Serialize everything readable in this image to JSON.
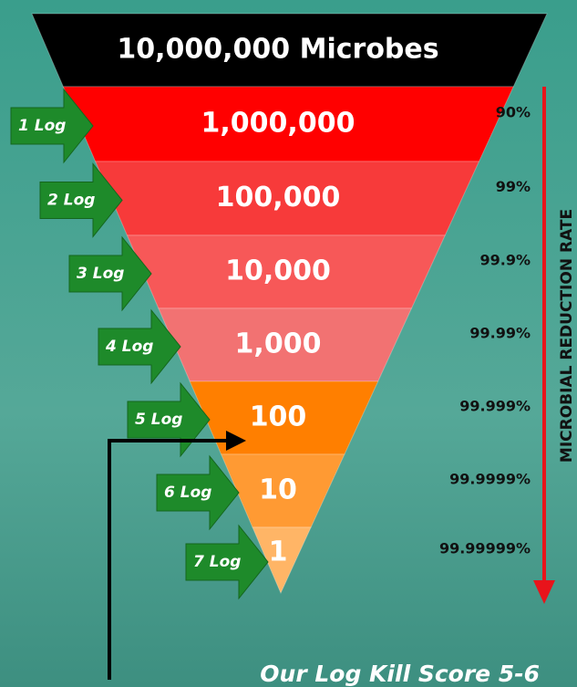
{
  "title": "10,000,000 Microbes",
  "levels": [
    {
      "count": "1,000,000",
      "log": "1 Log",
      "rate": "90%"
    },
    {
      "count": "100,000",
      "log": "2 Log",
      "rate": "99%"
    },
    {
      "count": "10,000",
      "log": "3 Log",
      "rate": "99.9%"
    },
    {
      "count": "1,000",
      "log": "4 Log",
      "rate": "99.99%"
    },
    {
      "count": "100",
      "log": "5 Log",
      "rate": "99.999%"
    },
    {
      "count": "10",
      "log": "6 Log",
      "rate": "99.9999%"
    },
    {
      "count": "1",
      "log": "7 Log",
      "rate": "99.99999%"
    }
  ],
  "side_label": "MICROBIAL REDUCTION RATE",
  "score_label": "Our Log Kill Score 5-6"
}
